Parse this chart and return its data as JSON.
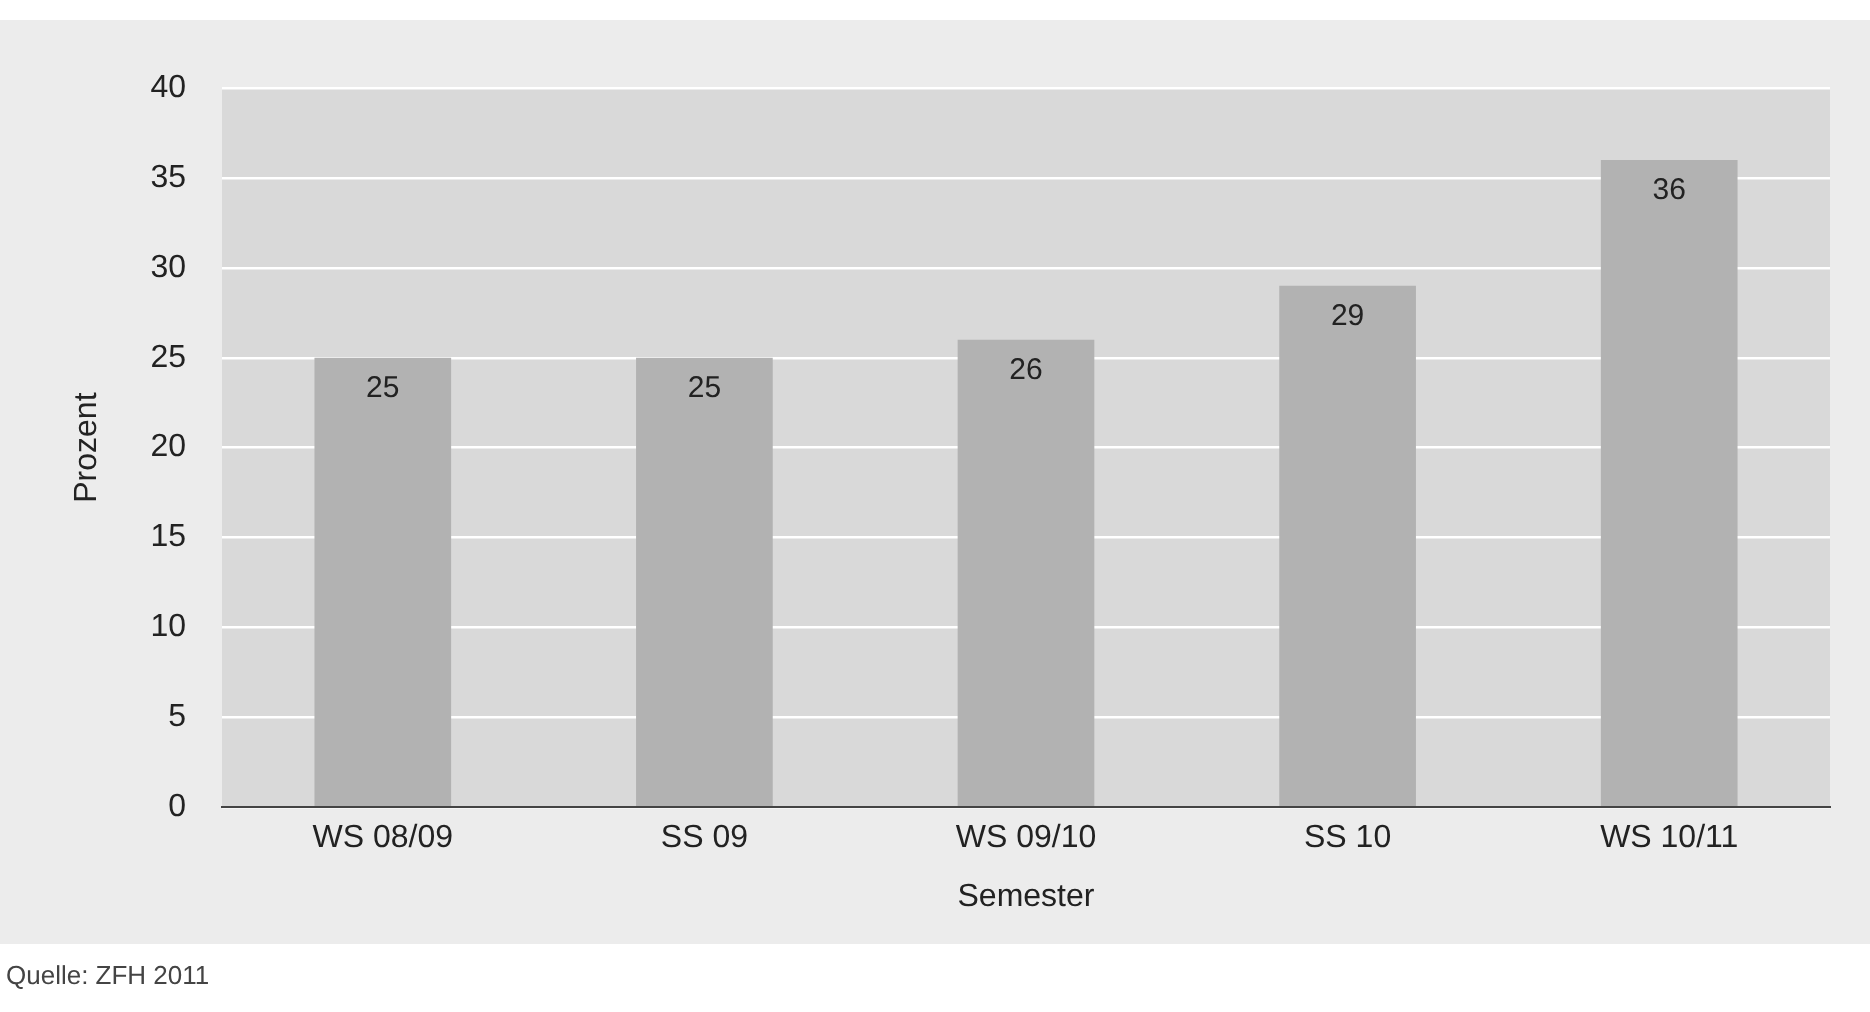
{
  "chart_data": {
    "type": "bar",
    "xlabel": "Semester",
    "ylabel": "Prozent",
    "categories": [
      "WS 08/09",
      "SS 09",
      "WS 09/10",
      "SS 10",
      "WS 10/11"
    ],
    "values": [
      25,
      25,
      26,
      29,
      36
    ],
    "color": "#b2b2b2",
    "ylim": [
      0,
      40
    ],
    "yticks": [
      0,
      5,
      10,
      15,
      20,
      25,
      30,
      35,
      40
    ],
    "grid": "y",
    "data_labels": true,
    "annotations": [
      "Quelle: ZFH 2011"
    ]
  }
}
